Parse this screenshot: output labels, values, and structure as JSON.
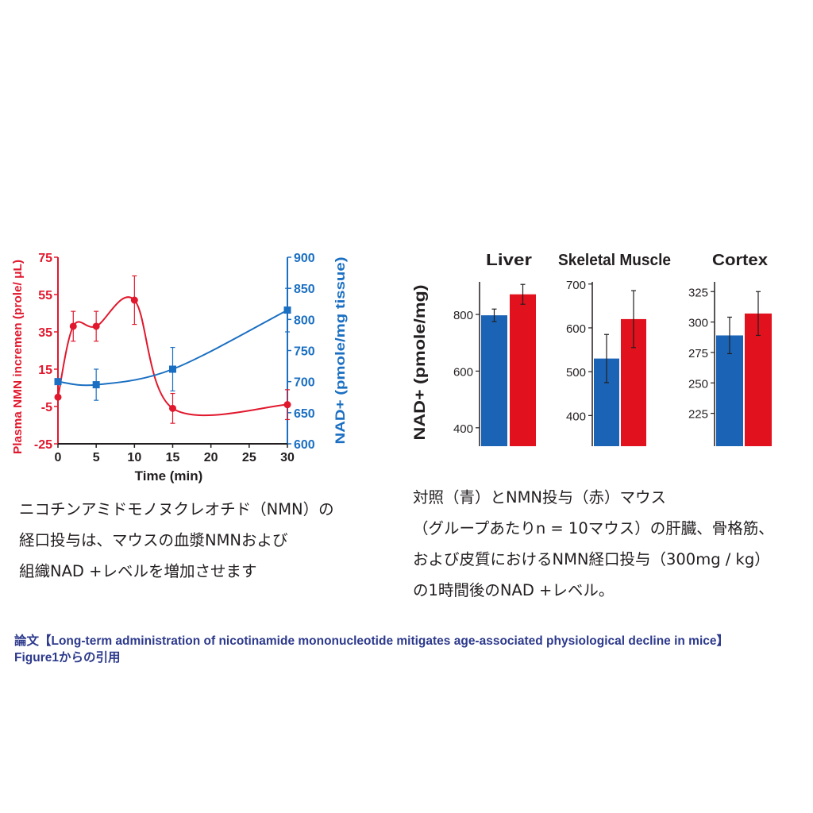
{
  "colors": {
    "red": "#e1182d",
    "blue": "#1a6fc2",
    "bar_blue": "#1b63b5",
    "bar_red": "#e1111d",
    "text": "#231f20",
    "citation": "#2d3a8c"
  },
  "chart_data": [
    {
      "type": "line",
      "xlabel": "Time (min)",
      "x_ticks": [
        "0",
        "5",
        "10",
        "15",
        "20",
        "25",
        "30"
      ],
      "xlim": [
        0,
        30
      ],
      "y_left": {
        "label": "Plasma NMN incremen (prole/ μL)",
        "ticks": [
          "75",
          "55",
          "35",
          "15",
          "-5",
          "-25"
        ],
        "ylim": [
          -25,
          75
        ]
      },
      "y_right": {
        "label": "NAD+ (pmole/mg tissue)",
        "ticks": [
          "900",
          "850",
          "800",
          "750",
          "700",
          "650",
          "600"
        ],
        "ylim": [
          600,
          900
        ]
      },
      "series": [
        {
          "axis": "left",
          "color": "#e1182d",
          "marker": "circle",
          "points": [
            {
              "x": 0,
              "y": 0,
              "err": 0
            },
            {
              "x": 2,
              "y": 38,
              "err": 8
            },
            {
              "x": 5,
              "y": 38,
              "err": 8
            },
            {
              "x": 10,
              "y": 52,
              "err": 13
            },
            {
              "x": 15,
              "y": -6,
              "err": 8
            },
            {
              "x": 30,
              "y": -4,
              "err": 8
            }
          ]
        },
        {
          "axis": "right",
          "color": "#1a6fc2",
          "marker": "square",
          "points": [
            {
              "x": 0,
              "y": 700,
              "err": 0
            },
            {
              "x": 5,
              "y": 695,
              "err": 25
            },
            {
              "x": 15,
              "y": 720,
              "err": 35
            },
            {
              "x": 30,
              "y": 815,
              "err": 35
            }
          ]
        }
      ]
    },
    {
      "type": "bar",
      "ylabel": "NAD+ (pmole/mg)",
      "panels": [
        {
          "title": "Liver",
          "ticks": [
            400,
            600,
            800
          ],
          "ylim": [
            335,
            915
          ],
          "values": [
            797,
            871
          ],
          "errors": [
            22,
            35
          ]
        },
        {
          "title": "Skeletal Muscle",
          "ticks": [
            400,
            500,
            600,
            700
          ],
          "ylim": [
            330,
            705
          ],
          "values": [
            530,
            620
          ],
          "errors": [
            55,
            65
          ]
        },
        {
          "title": "Cortex",
          "ticks": [
            225,
            250,
            275,
            300,
            325
          ],
          "ylim": [
            198,
            333
          ],
          "values": [
            289,
            307
          ],
          "errors": [
            15,
            18
          ]
        }
      ]
    }
  ],
  "caption_left": [
    "ニコチンアミドモノヌクレオチド（NMN）の",
    "経口投与は、マウスの血漿NMNおよび",
    "組織NAD +レベルを増加させます"
  ],
  "caption_right": [
    "対照（青）とNMN投与（赤）マウス",
    "（グループあたりn = 10マウス）の肝臓、骨格筋、",
    "および皮質におけるNMN経口投与（300mg / kg）",
    "の1時間後のNAD +レベル。"
  ],
  "citation": [
    "論文【Long-term administration of nicotinamide mononucleotide mitigates age-associated physiological decline in mice】",
    "Figure1からの引用"
  ]
}
